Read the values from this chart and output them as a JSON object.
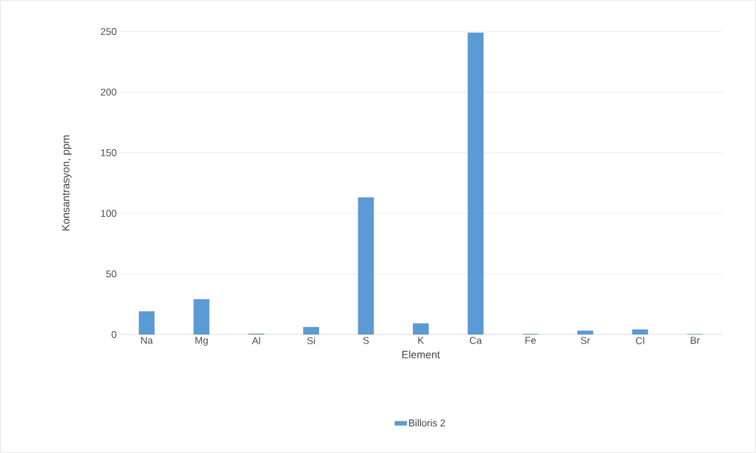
{
  "chart_data": {
    "type": "bar",
    "xlabel": "Element",
    "ylabel": "Konsantrasyon, ppm",
    "categories": [
      "Na",
      "Mg",
      "Al",
      "Si",
      "S",
      "K",
      "Ca",
      "Fe",
      "Sr",
      "Cl",
      "Br"
    ],
    "series": [
      {
        "name": "Billoris 2",
        "color": "#5b9bd5",
        "values": [
          19,
          29,
          0.5,
          6,
          113,
          9,
          249,
          0.3,
          3,
          4,
          0.2
        ]
      }
    ],
    "ylim": [
      0,
      250
    ],
    "yticks": [
      0,
      50,
      100,
      150,
      200,
      250
    ],
    "grid": "y",
    "legend": "bottom"
  }
}
